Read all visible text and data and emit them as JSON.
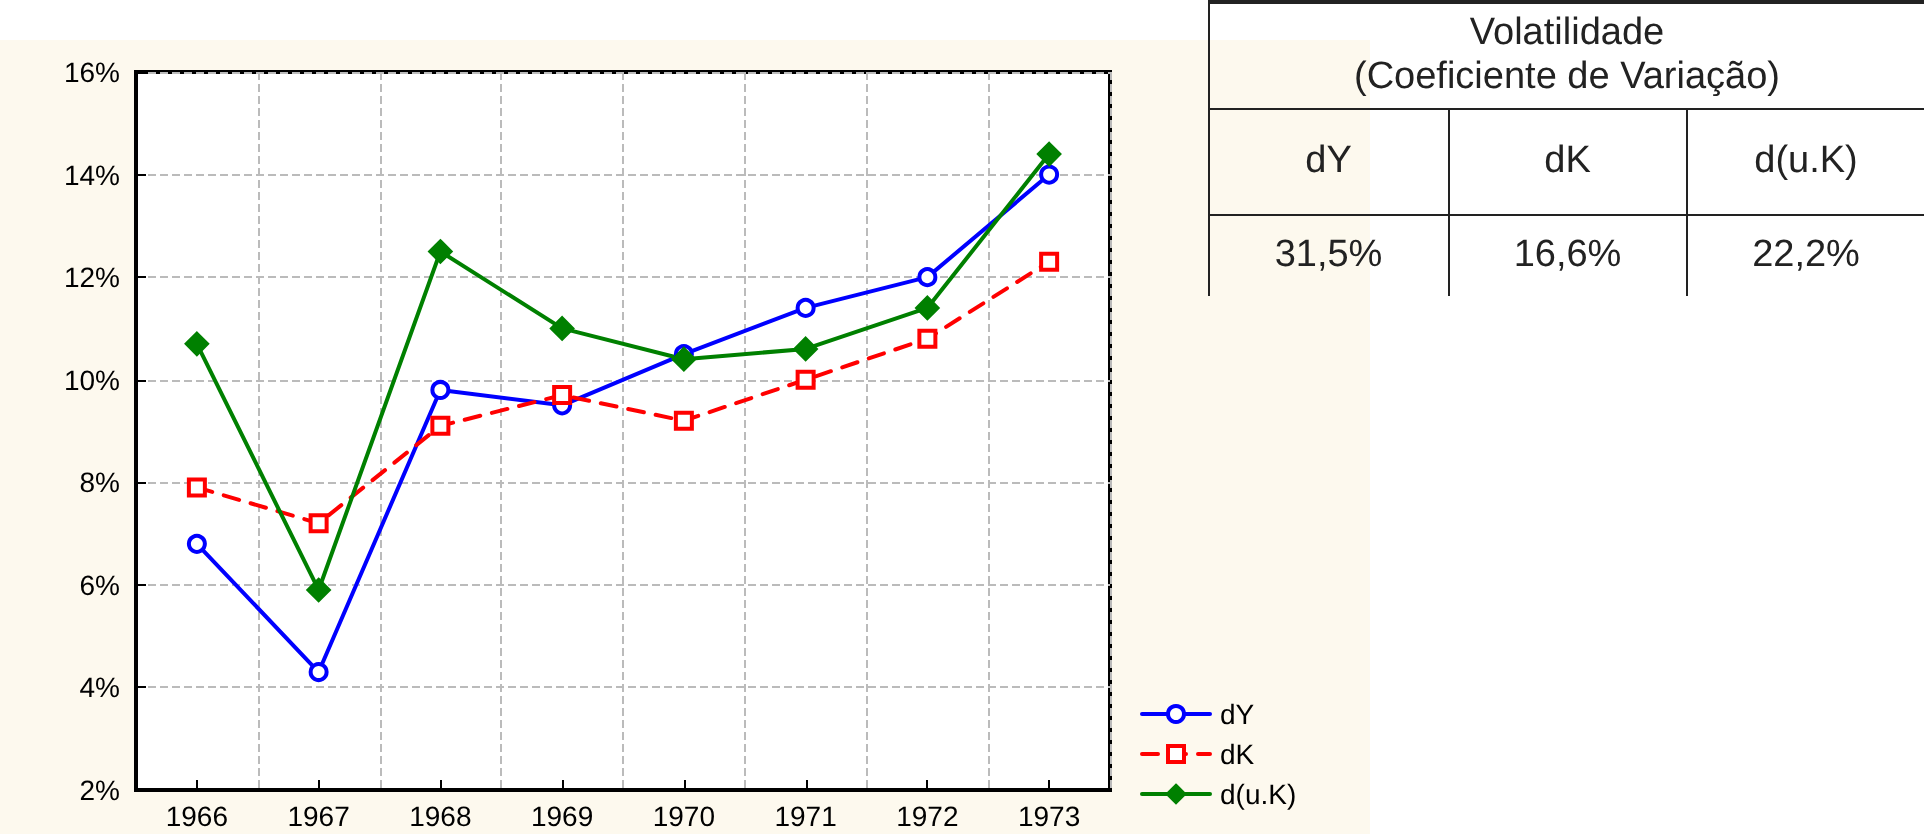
{
  "chart_data": [
    {
      "type": "line",
      "categories": [
        "1966",
        "1967",
        "1968",
        "1969",
        "1970",
        "1971",
        "1972",
        "1973"
      ],
      "series": [
        {
          "name": "dY",
          "color": "#0000ff",
          "marker": "circle",
          "line_style": "solid",
          "values": [
            6.8,
            4.3,
            9.8,
            9.5,
            10.5,
            11.4,
            12.0,
            14.0
          ]
        },
        {
          "name": "dK",
          "color": "#ff0000",
          "marker": "square",
          "line_style": "dashed",
          "values": [
            7.9,
            7.2,
            9.1,
            9.7,
            9.2,
            10.0,
            10.8,
            12.3
          ]
        },
        {
          "name": "d(u.K)",
          "color": "#008000",
          "marker": "diamond",
          "line_style": "solid",
          "values": [
            10.7,
            5.9,
            12.5,
            11.0,
            10.4,
            10.6,
            11.4,
            14.4
          ]
        }
      ],
      "ylim": [
        2,
        16
      ],
      "yticks": [
        {
          "value": 2,
          "label": "2%"
        },
        {
          "value": 4,
          "label": "4%"
        },
        {
          "value": 6,
          "label": "6%"
        },
        {
          "value": 8,
          "label": "8%"
        },
        {
          "value": 10,
          "label": "10%"
        },
        {
          "value": 12,
          "label": "12%"
        },
        {
          "value": 14,
          "label": "14%"
        },
        {
          "value": 16,
          "label": "16%"
        }
      ],
      "grid": true,
      "legend": "bottom right"
    },
    {
      "type": "other",
      "title": "Volatilidade\n(Coeficiente de Variação)",
      "annotations": [
        "dY",
        "dK",
        "d(u.K)",
        "31,5%",
        "16,6%",
        "22,2%"
      ]
    }
  ]
}
